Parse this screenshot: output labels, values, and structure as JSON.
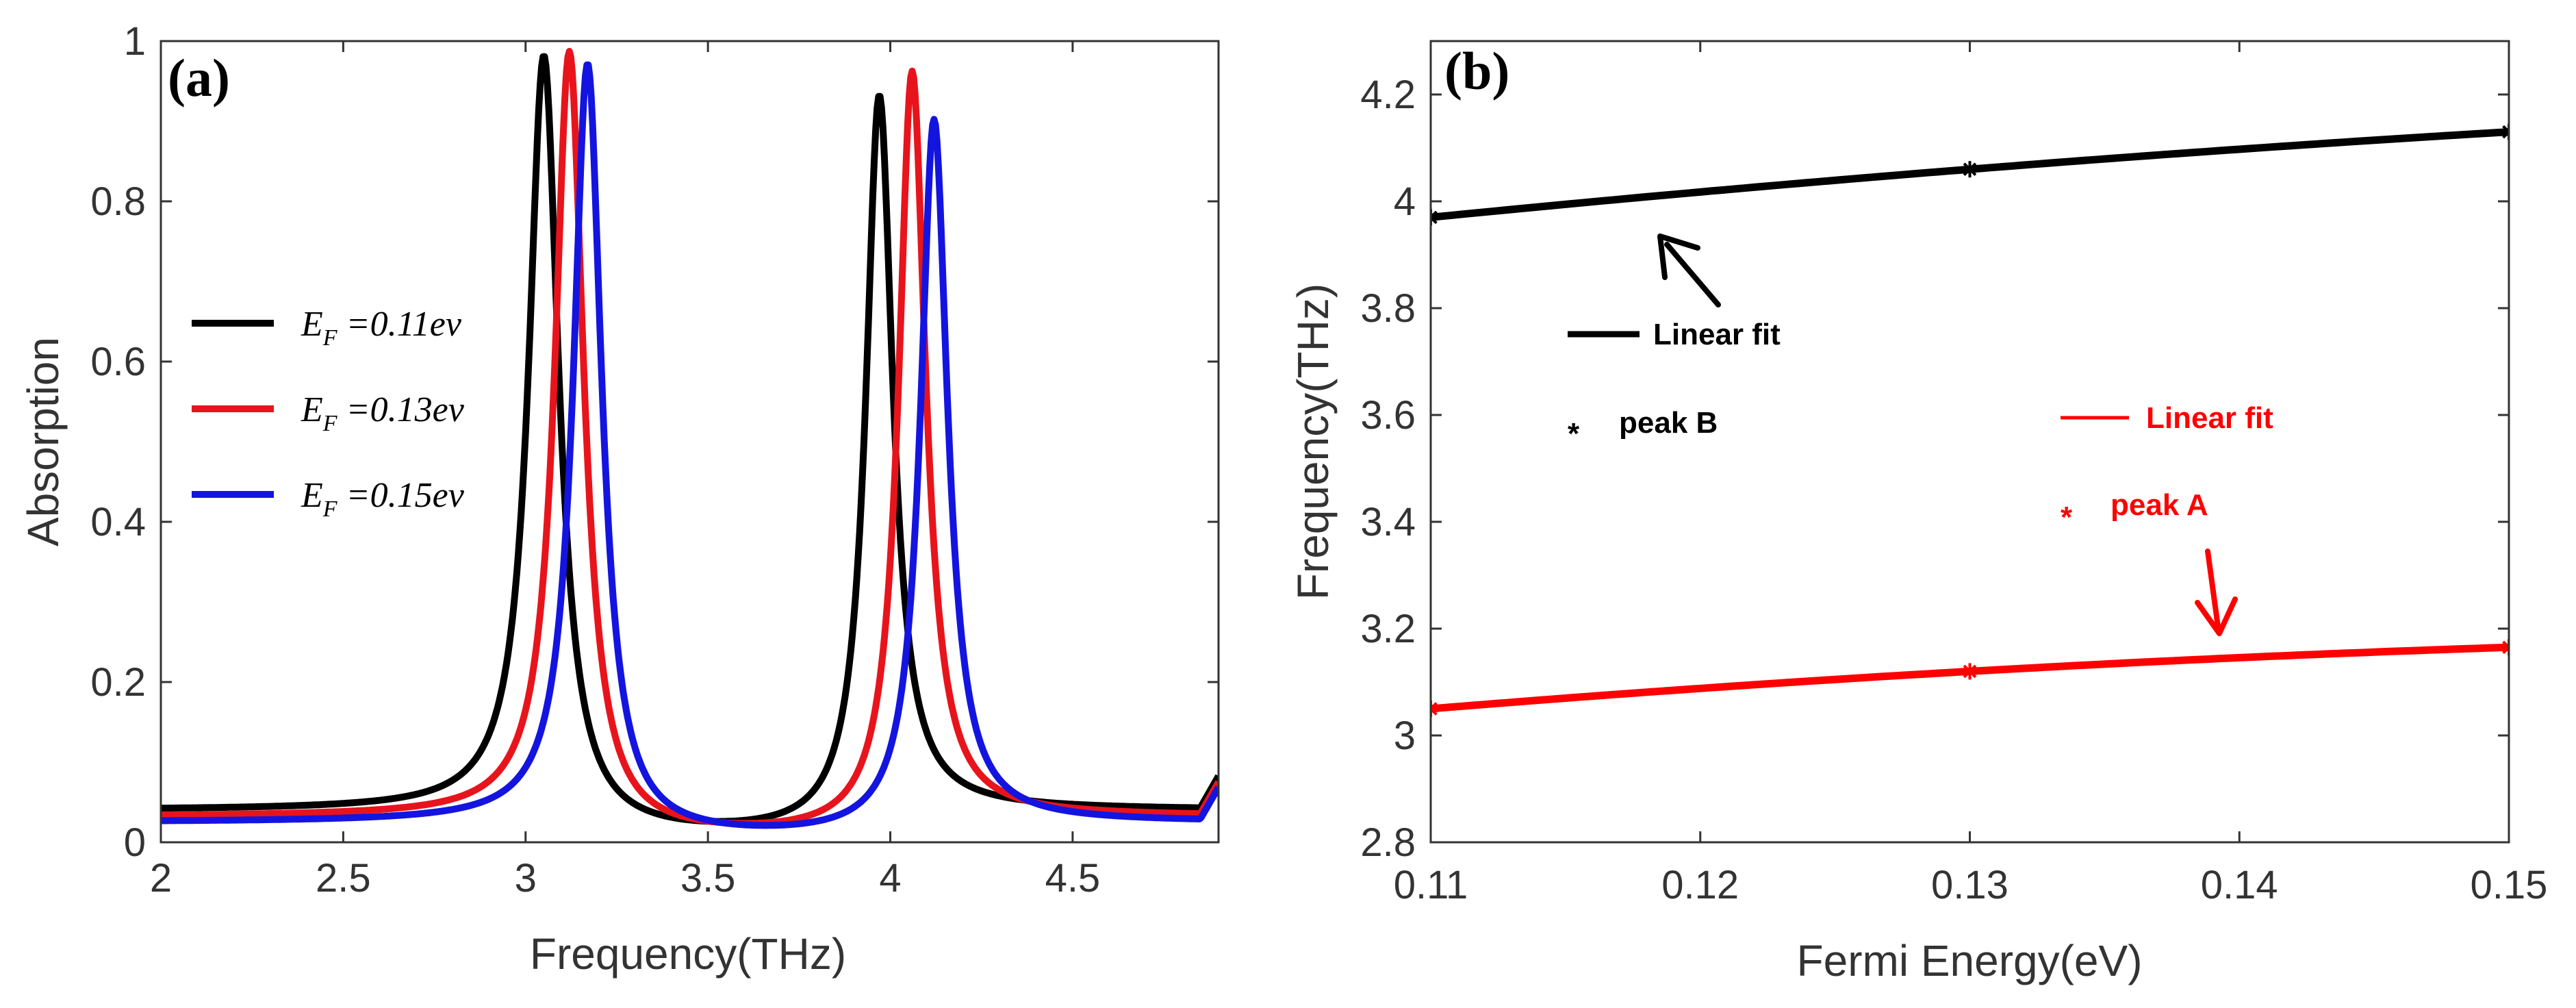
{
  "chart_data": [
    {
      "type": "line",
      "panel_label": "(a)",
      "xlabel": "Frequency(THz)",
      "ylabel": "Absorption",
      "xlim": [
        2,
        4.9
      ],
      "ylim": [
        0,
        1
      ],
      "xticks": [
        "2",
        "2.5",
        "3",
        "3.5",
        "4",
        "4.5"
      ],
      "yticks": [
        "0",
        "0.2",
        "0.4",
        "0.6",
        "0.8",
        "1"
      ],
      "legend_position": "center-left",
      "series": [
        {
          "name": "E_F = 0.11ev",
          "legend_letter": "E",
          "legend_sub": "F",
          "legend_rest": " =0.11ev",
          "color": "#000000",
          "peaks": [
            {
              "f0": 3.05,
              "gamma": 0.05,
              "amp": 0.98
            },
            {
              "f0": 3.97,
              "gamma": 0.045,
              "amp": 0.93
            }
          ],
          "baseline": 0.04
        },
        {
          "name": "E_F = 0.13ev",
          "legend_letter": "E",
          "legend_sub": "F",
          "legend_rest": " =0.13ev",
          "color": "#e8141c",
          "peaks": [
            {
              "f0": 3.12,
              "gamma": 0.048,
              "amp": 0.985
            },
            {
              "f0": 4.06,
              "gamma": 0.045,
              "amp": 0.96
            }
          ],
          "baseline": 0.032
        },
        {
          "name": "E_F = 0.15ev",
          "legend_letter": "E",
          "legend_sub": "F",
          "legend_rest": " =0.15ev",
          "color": "#1414e0",
          "peaks": [
            {
              "f0": 3.17,
              "gamma": 0.047,
              "amp": 0.97
            },
            {
              "f0": 4.12,
              "gamma": 0.045,
              "amp": 0.9
            }
          ],
          "baseline": 0.025
        }
      ]
    },
    {
      "type": "line",
      "panel_label": "(b)",
      "xlabel": "Fermi Energy(eV)",
      "ylabel": "Frequency(THz)",
      "xlim": [
        0.11,
        0.15
      ],
      "ylim": [
        2.8,
        4.3
      ],
      "xticks": [
        "0.11",
        "0.12",
        "0.13",
        "0.14",
        "0.15"
      ],
      "yticks": [
        "2.8",
        "3",
        "3.2",
        "3.4",
        "3.6",
        "3.8",
        "4",
        "4.2"
      ],
      "series": [
        {
          "name": "peak B",
          "color": "#000000",
          "x": [
            0.11,
            0.13,
            0.15
          ],
          "y": [
            3.97,
            4.06,
            4.13
          ]
        },
        {
          "name": "peak A",
          "color": "#ff0000",
          "x": [
            0.11,
            0.13,
            0.15
          ],
          "y": [
            3.05,
            3.12,
            3.165
          ]
        }
      ],
      "annotations": {
        "black_fit_label": "Linear fit",
        "black_marker_symbol": "*",
        "black_marker_label": "peak B",
        "red_fit_label": "Linear fit",
        "red_marker_symbol": "*",
        "red_marker_label": "peak A"
      }
    }
  ]
}
